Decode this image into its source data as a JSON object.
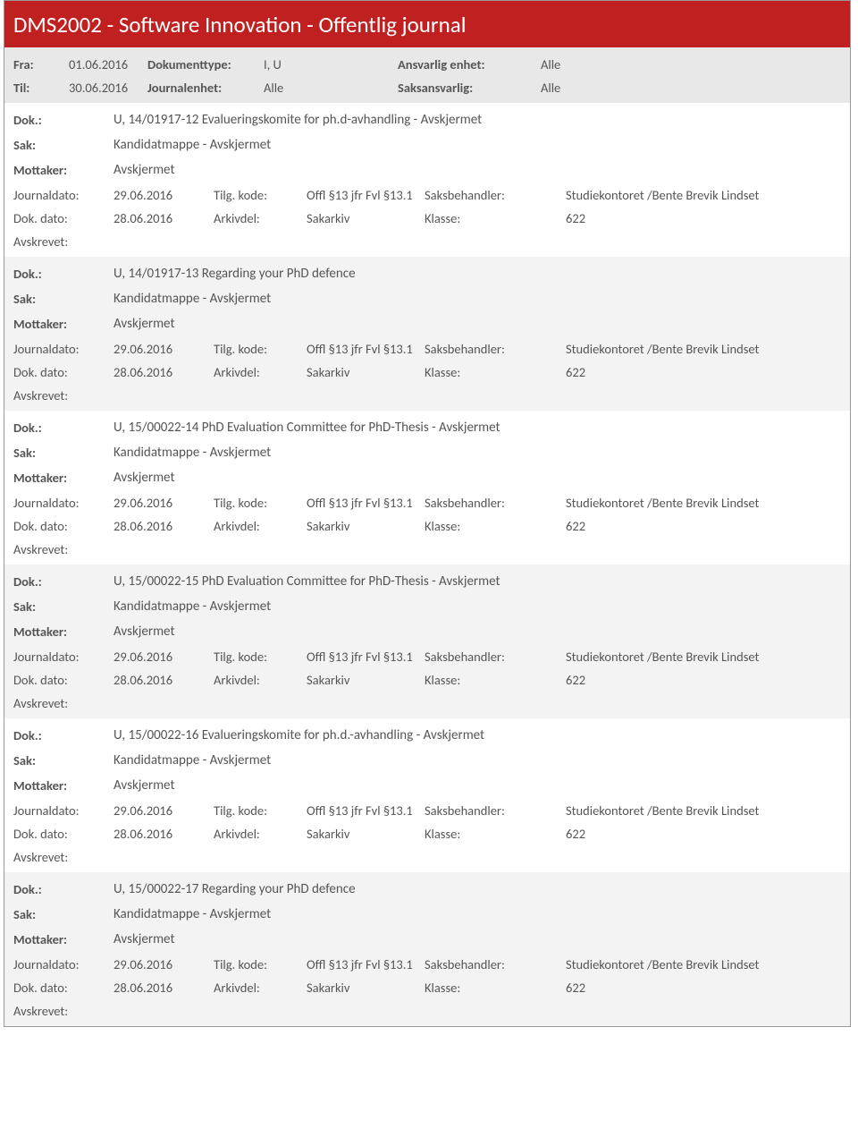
{
  "title": "DMS2002 - Software Innovation - Offentlig journal",
  "filter": {
    "fra_label": "Fra:",
    "fra_value": "01.06.2016",
    "til_label": "Til:",
    "til_value": "30.06.2016",
    "dokumenttype_label": "Dokumenttype:",
    "dokumenttype_value": "I, U",
    "journalenhet_label": "Journalenhet:",
    "journalenhet_value": "Alle",
    "ansvarlig_label": "Ansvarlig enhet:",
    "ansvarlig_value": "Alle",
    "saksansvarlig_label": "Saksansvarlig:",
    "saksansvarlig_value": "Alle"
  },
  "labels": {
    "dok": "Dok.:",
    "sak": "Sak:",
    "mottaker": "Mottaker:",
    "journaldato": "Journaldato:",
    "dokdato": "Dok. dato:",
    "tilgkode": "Tilg. kode:",
    "arkivdel": "Arkivdel:",
    "saksbehandler": "Saksbehandler:",
    "klasse": "Klasse:",
    "avskrevet": "Avskrevet:"
  },
  "entries": [
    {
      "dok": "U, 14/01917-12 Evalueringskomite for ph.d-avhandling - Avskjermet",
      "sak": "Kandidatmappe - Avskjermet",
      "mottaker": "Avskjermet",
      "journaldato": "29.06.2016",
      "dokdato": "28.06.2016",
      "tilgkode": "Offl §13 jfr Fvl §13.1",
      "arkivdel": "Sakarkiv",
      "saksbehandler": "Studiekontoret /Bente Brevik Lindset",
      "klasse": "622"
    },
    {
      "dok": "U, 14/01917-13 Regarding your PhD defence",
      "sak": "Kandidatmappe - Avskjermet",
      "mottaker": "Avskjermet",
      "journaldato": "29.06.2016",
      "dokdato": "28.06.2016",
      "tilgkode": "Offl §13 jfr Fvl §13.1",
      "arkivdel": "Sakarkiv",
      "saksbehandler": "Studiekontoret /Bente Brevik Lindset",
      "klasse": "622"
    },
    {
      "dok": "U, 15/00022-14 PhD Evaluation Committee for PhD-Thesis - Avskjermet",
      "sak": "Kandidatmappe - Avskjermet",
      "mottaker": "Avskjermet",
      "journaldato": "29.06.2016",
      "dokdato": "28.06.2016",
      "tilgkode": "Offl §13 jfr Fvl §13.1",
      "arkivdel": "Sakarkiv",
      "saksbehandler": "Studiekontoret /Bente Brevik Lindset",
      "klasse": "622"
    },
    {
      "dok": "U, 15/00022-15 PhD Evaluation Committee for PhD-Thesis - Avskjermet",
      "sak": "Kandidatmappe - Avskjermet",
      "mottaker": "Avskjermet",
      "journaldato": "29.06.2016",
      "dokdato": "28.06.2016",
      "tilgkode": "Offl §13 jfr Fvl §13.1",
      "arkivdel": "Sakarkiv",
      "saksbehandler": "Studiekontoret /Bente Brevik Lindset",
      "klasse": "622"
    },
    {
      "dok": "U, 15/00022-16 Evalueringskomite for ph.d.-avhandling - Avskjermet",
      "sak": "Kandidatmappe - Avskjermet",
      "mottaker": "Avskjermet",
      "journaldato": "29.06.2016",
      "dokdato": "28.06.2016",
      "tilgkode": "Offl §13 jfr Fvl §13.1",
      "arkivdel": "Sakarkiv",
      "saksbehandler": "Studiekontoret /Bente Brevik Lindset",
      "klasse": "622"
    },
    {
      "dok": "U, 15/00022-17 Regarding your PhD defence",
      "sak": "Kandidatmappe - Avskjermet",
      "mottaker": "Avskjermet",
      "journaldato": "29.06.2016",
      "dokdato": "28.06.2016",
      "tilgkode": "Offl §13 jfr Fvl §13.1",
      "arkivdel": "Sakarkiv",
      "saksbehandler": "Studiekontoret /Bente Brevik Lindset",
      "klasse": "622"
    }
  ]
}
